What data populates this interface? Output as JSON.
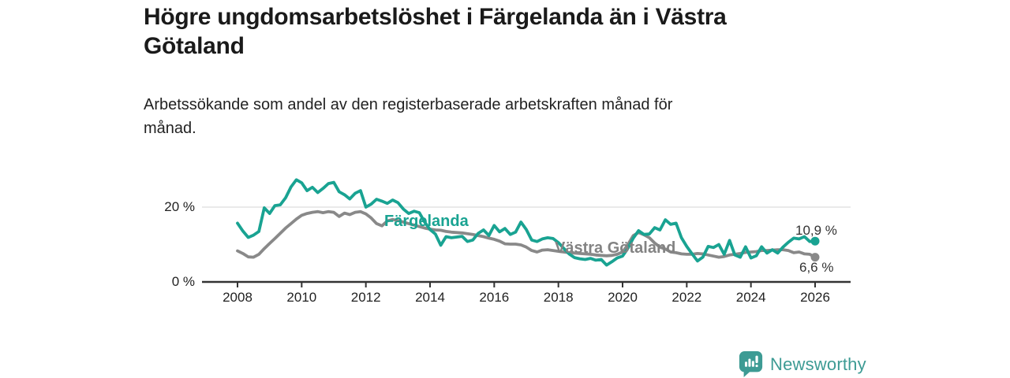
{
  "header": {
    "title": "Högre ungdomsarbetslöshet i Färgelanda än i Västra\nGötaland",
    "subtitle": "Arbetssökande som andel av den registerbaserade arbetskraften månad för\nmånad."
  },
  "colors": {
    "accent_teal": "#19A392",
    "series_gray": "#898989",
    "label_gray": "#838383",
    "grid": "#DDDDDD",
    "axis": "#333333",
    "tick_text": "#222222",
    "title_text": "#1A1A1A",
    "logo_teal": "#3D9B94"
  },
  "footer": {
    "brand": "Newsworthy",
    "logo_icon": "newsworthy-chart-bubble-icon"
  },
  "chart_data": {
    "type": "line",
    "title": "Högre ungdomsarbetslöshet i Färgelanda än i Västra Götaland",
    "subtitle": "Arbetssökande som andel av den registerbaserade arbetskraften månad för månad.",
    "xlabel": "",
    "ylabel": "",
    "unit": "%",
    "x_start": 2008.0,
    "x_step_years": 0.166667,
    "x_end": 2026.0,
    "ylim": [
      0,
      28
    ],
    "grid": "y-20-only",
    "legend_position": "inline-labels",
    "x_ticks": [
      2008,
      2010,
      2012,
      2014,
      2016,
      2018,
      2020,
      2022,
      2024,
      2026
    ],
    "y_ticks": [
      {
        "value": 0,
        "label": "0 %"
      },
      {
        "value": 20,
        "label": "20 %"
      }
    ],
    "series": [
      {
        "name": "Färgelanda",
        "color": "#19A392",
        "end_label": "10,9 %",
        "end_value": 10.9,
        "values": [
          15.7,
          13.6,
          11.9,
          12.5,
          13.5,
          19.8,
          18.3,
          20.4,
          20.6,
          22.5,
          25.4,
          27.3,
          26.5,
          24.4,
          25.3,
          23.9,
          25.0,
          26.3,
          26.6,
          24.1,
          23.3,
          22.2,
          23.7,
          24.4,
          20.0,
          20.8,
          22.1,
          21.6,
          21.0,
          21.9,
          21.2,
          19.5,
          18.3,
          18.9,
          18.5,
          16.0,
          14.0,
          12.8,
          9.8,
          12.1,
          11.8,
          12.0,
          12.2,
          10.8,
          11.2,
          13.0,
          13.9,
          12.4,
          15.1,
          13.4,
          14.3,
          12.7,
          13.3,
          16.0,
          14.0,
          11.2,
          10.8,
          11.5,
          11.8,
          11.6,
          10.5,
          9.0,
          7.5,
          6.5,
          6.2,
          6.0,
          6.3,
          5.8,
          6.0,
          4.5,
          5.4,
          6.4,
          6.9,
          9.0,
          11.7,
          13.7,
          12.7,
          12.8,
          14.5,
          13.9,
          16.6,
          15.4,
          15.7,
          11.8,
          9.5,
          7.5,
          5.6,
          6.6,
          9.5,
          9.2,
          10.0,
          7.4,
          11.1,
          7.2,
          6.6,
          9.4,
          6.4,
          7.0,
          9.4,
          7.7,
          8.6,
          7.7,
          9.3,
          10.6,
          11.7,
          11.5,
          12.1,
          10.8,
          10.9
        ]
      },
      {
        "name": "Västra Götaland",
        "color": "#898989",
        "end_label": "6,6 %",
        "end_value": 6.6,
        "values": [
          8.3,
          7.6,
          6.7,
          6.6,
          7.4,
          8.9,
          10.3,
          11.6,
          13.0,
          14.4,
          15.6,
          16.8,
          17.8,
          18.3,
          18.6,
          18.8,
          18.5,
          18.8,
          18.6,
          17.5,
          18.4,
          18.0,
          18.6,
          18.8,
          18.2,
          17.1,
          15.6,
          15.0,
          16.3,
          16.7,
          16.4,
          16.0,
          15.6,
          15.2,
          14.8,
          14.4,
          14.1,
          13.9,
          13.8,
          13.5,
          13.3,
          13.2,
          13.1,
          12.9,
          12.7,
          12.4,
          12.1,
          11.7,
          11.4,
          10.9,
          10.2,
          10.1,
          10.1,
          9.9,
          9.3,
          8.4,
          8.0,
          8.5,
          8.6,
          8.4,
          8.2,
          8.0,
          7.8,
          7.7,
          7.6,
          7.5,
          7.4,
          7.2,
          7.1,
          7.0,
          7.1,
          7.4,
          8.0,
          10.0,
          12.4,
          13.2,
          12.6,
          11.8,
          10.4,
          9.3,
          8.8,
          8.0,
          7.8,
          7.5,
          7.4,
          7.4,
          7.6,
          7.5,
          7.2,
          6.9,
          6.6,
          6.8,
          7.2,
          7.4,
          7.6,
          7.9,
          8.0,
          8.1,
          8.4,
          8.4,
          8.5,
          8.6,
          8.6,
          8.4,
          7.8,
          8.0,
          7.5,
          7.4,
          6.6
        ]
      }
    ]
  }
}
